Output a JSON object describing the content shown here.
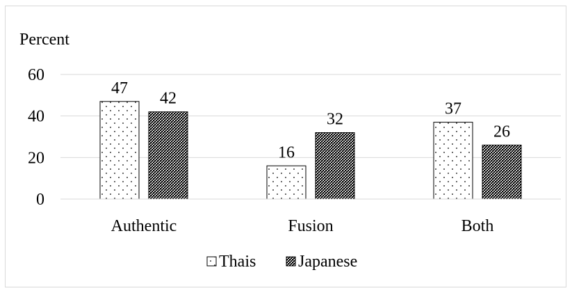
{
  "chart_data": {
    "type": "bar",
    "ylabel": "Percent",
    "categories": [
      "Authentic",
      "Fusion",
      "Both"
    ],
    "series": [
      {
        "name": "Thais",
        "values": [
          47,
          16,
          37
        ],
        "pattern": "sparse-dots",
        "fill": "#ffffff"
      },
      {
        "name": "Japanese",
        "values": [
          42,
          32,
          26
        ],
        "pattern": "dense-checker",
        "fill": "#000000"
      }
    ],
    "ylim": [
      0,
      60
    ],
    "yticks": [
      "0",
      "20",
      "40",
      "60"
    ],
    "grid": true,
    "gridline_color": "#d9d9d9",
    "data_labels": true,
    "legend_position": "bottom"
  }
}
